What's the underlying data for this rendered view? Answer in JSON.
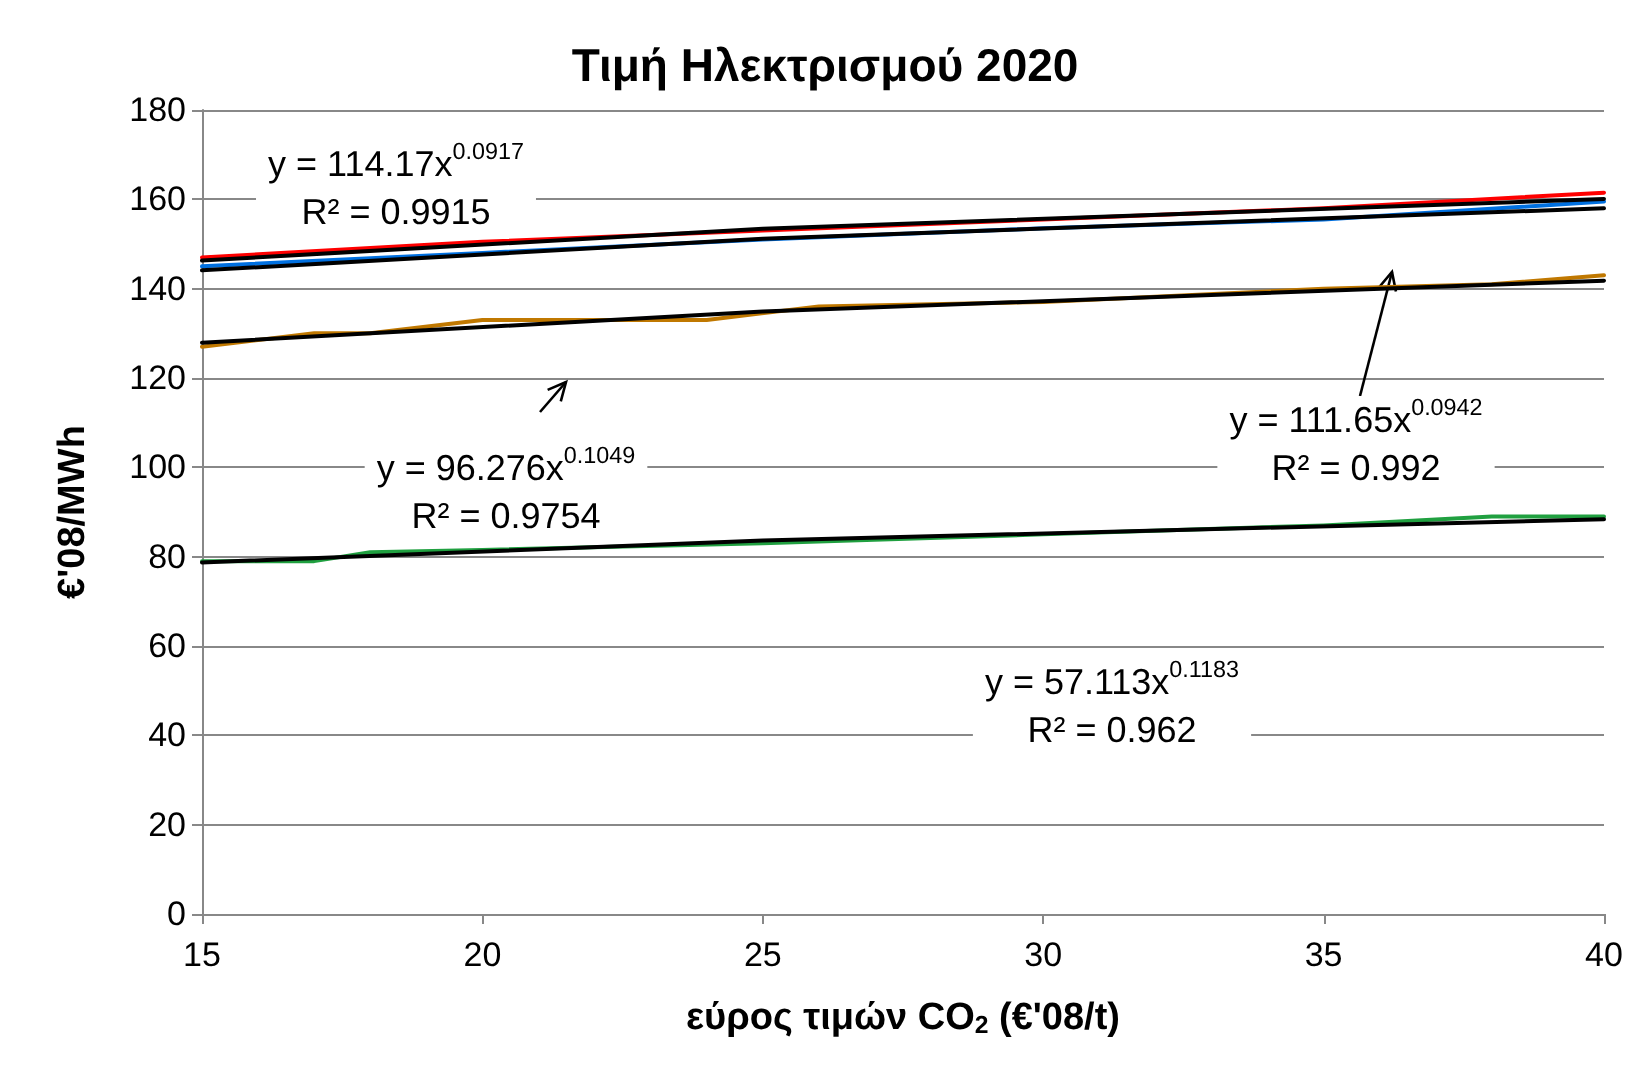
{
  "chart_data": {
    "type": "line",
    "title": "Τιμή Ηλεκτρισμού 2020",
    "xlabel": "εύρος τιμών CO$_{2}$ (€'08/t)",
    "ylabel": "€'08/MWh",
    "xlim": [
      15,
      40
    ],
    "xticks": [
      15,
      20,
      25,
      30,
      35,
      40
    ],
    "ylim": [
      0,
      180
    ],
    "yticks": [
      0,
      20,
      40,
      60,
      80,
      100,
      120,
      140,
      160,
      180
    ],
    "grid": "y",
    "marker": "none",
    "line_style": "solid",
    "series": [
      {
        "color": "#ff0000",
        "x": [
          15,
          20,
          25,
          30,
          35,
          40
        ],
        "values": [
          147,
          150.5,
          153,
          155.5,
          158,
          161.5
        ]
      },
      {
        "color": "#0070e0",
        "x": [
          15,
          20,
          25,
          30,
          35,
          40
        ],
        "values": [
          145,
          148,
          151,
          153.5,
          155.5,
          159.5
        ]
      },
      {
        "color": "#c07800",
        "x": [
          15,
          17,
          18,
          20,
          22,
          24,
          26,
          30,
          35,
          38,
          40
        ],
        "values": [
          127,
          130,
          130,
          133,
          133,
          133,
          136,
          137,
          140,
          141,
          143
        ]
      },
      {
        "color": "#20a040",
        "x": [
          15,
          17,
          18,
          20,
          25,
          30,
          35,
          38,
          40
        ],
        "values": [
          79,
          79,
          81,
          81.5,
          83,
          85,
          87,
          89,
          89
        ]
      },
      {
        "color": "#000000",
        "x": [
          15,
          25,
          40
        ],
        "values": [
          146.3,
          153.4,
          160.1
        ]
      },
      {
        "color": "#000000",
        "x": [
          15,
          25,
          40
        ],
        "values": [
          144.1,
          151.2,
          158
        ]
      },
      {
        "color": "#000000",
        "x": [
          15,
          25,
          40
        ],
        "values": [
          127.9,
          134.9,
          141.8
        ]
      },
      {
        "color": "#000000",
        "x": [
          15,
          25,
          40
        ],
        "values": [
          78.7,
          83.6,
          88.4
        ]
      }
    ],
    "annotations": [
      "y = 114.17x$^{0.0917}$\nR² = 0.9915",
      "y = 111.65x$^{0.0942}$\nR² = 0.992",
      "y = 96.276x$^{0.1049}$\nR² = 0.9754",
      "y = 57.113x$^{0.1183}$\nR² = 0.962"
    ]
  }
}
